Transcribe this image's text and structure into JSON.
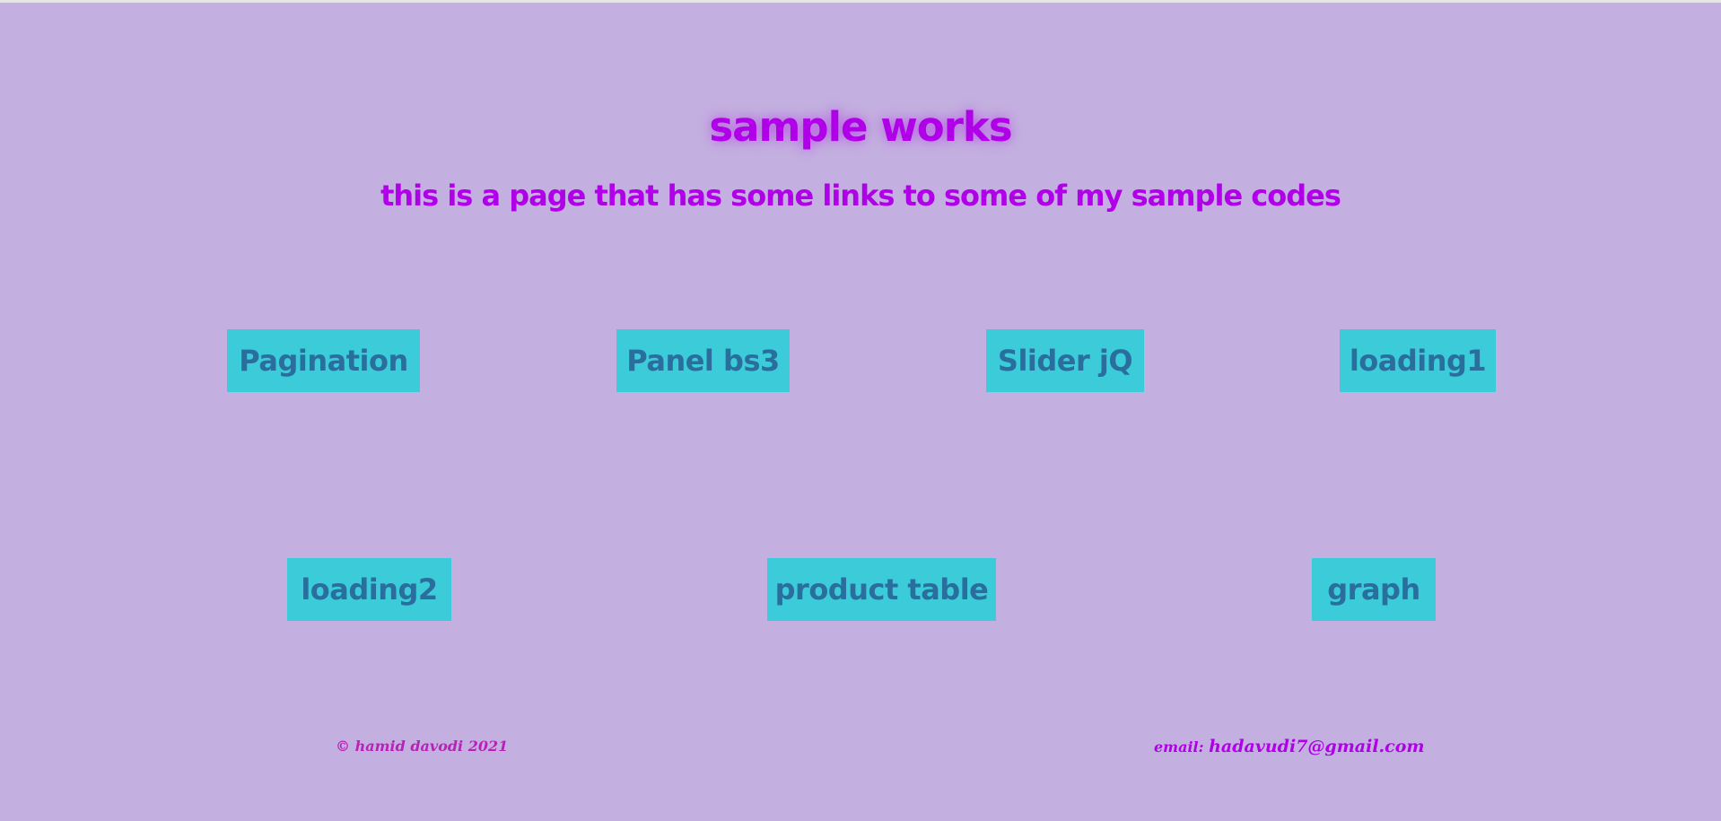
{
  "header": {
    "title": "sample works",
    "subtitle": "this is a page that has some links to some of my sample codes"
  },
  "links": [
    {
      "label": "Pagination"
    },
    {
      "label": "Panel bs3"
    },
    {
      "label": "Slider jQ"
    },
    {
      "label": "loading1"
    },
    {
      "label": "loading2"
    },
    {
      "label": "product table"
    },
    {
      "label": "graph"
    }
  ],
  "footer": {
    "copyright": "© hamid davodi 2021",
    "email_prefix": "email: ",
    "email": "hadavudi7@gmail.com"
  },
  "colors": {
    "background": "#c4b0e0",
    "accent": "#b000e8",
    "button_bg": "#3ccbd8",
    "button_text": "#2a6e9e"
  }
}
